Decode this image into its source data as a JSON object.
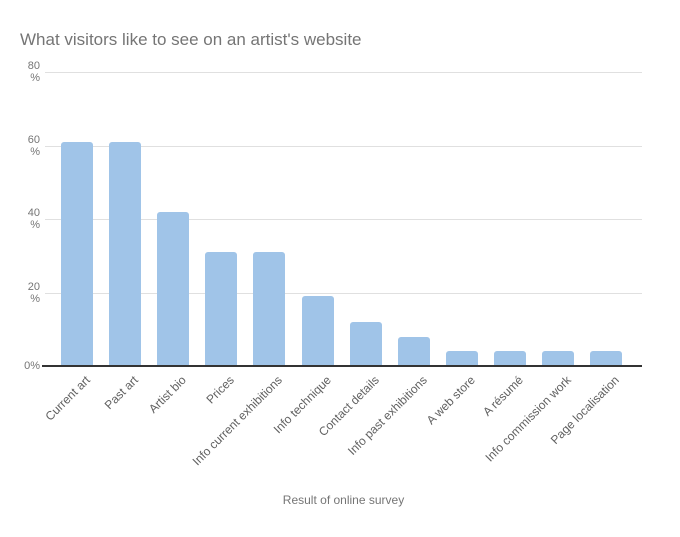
{
  "chart_data": {
    "type": "bar",
    "title": "What visitors like to see on an artist's website",
    "xlabel": "Result of online survey",
    "ylabel": "%",
    "ylim": [
      0,
      80
    ],
    "grid": true,
    "legend": "none",
    "categories": [
      "Current art",
      "Past art",
      "Artist bio",
      "Prices",
      "Info current exhibitions",
      "Info technique",
      "Contact details",
      "Info past exhibitions",
      "A web store",
      "A résumé",
      "Info commission work",
      "Page localisation"
    ],
    "values": [
      61,
      61,
      42,
      31,
      31,
      19,
      12,
      8,
      4,
      4,
      4,
      4
    ],
    "y_ticks": [
      {
        "value": 80,
        "lines": [
          "80",
          "%"
        ]
      },
      {
        "value": 60,
        "lines": [
          "60",
          "%"
        ]
      },
      {
        "value": 40,
        "lines": [
          "40",
          "%"
        ]
      },
      {
        "value": 20,
        "lines": [
          "20",
          "%"
        ]
      },
      {
        "value": 0,
        "lines": [
          "0%"
        ]
      }
    ],
    "colors": {
      "bar": "#a0c4e8",
      "gridline": "#e0e0e0",
      "axis_line": "#333333",
      "title_text": "#757575",
      "tick_text": "#757575",
      "category_text": "#616161"
    }
  }
}
